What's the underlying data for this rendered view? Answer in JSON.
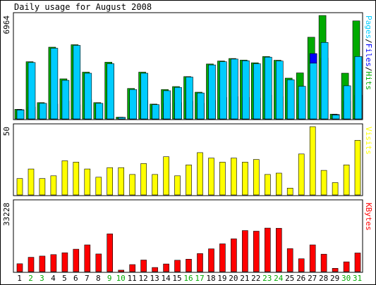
{
  "title": "Daily usage for August 2008",
  "colors": {
    "hits": "#00aa00",
    "files": "#0000ff",
    "pages": "#00ccff",
    "visits": "#ffff00",
    "kbytes": "#ff0000",
    "weekend_label": "#00aa00",
    "weekday_label": "#000000",
    "panel_bg": "#ffffff"
  },
  "chart_data": {
    "type": "bar",
    "title": "Daily usage for August 2008",
    "days": [
      "1",
      "2",
      "3",
      "4",
      "5",
      "6",
      "7",
      "8",
      "9",
      "10",
      "11",
      "12",
      "13",
      "14",
      "15",
      "16",
      "17",
      "18",
      "19",
      "20",
      "21",
      "22",
      "23",
      "24",
      "25",
      "26",
      "27",
      "28",
      "29",
      "30",
      "31"
    ],
    "weekend_days": [
      2,
      3,
      9,
      10,
      16,
      17,
      23,
      24,
      30,
      31
    ],
    "panels": [
      {
        "name": "usage",
        "max_label": "6964",
        "ymax": 6964,
        "right_label_parts": [
          {
            "text": "Pages",
            "color_key": "pages"
          },
          {
            "text": "/",
            "color_key": "weekday_label"
          },
          {
            "text": "Files",
            "color_key": "files"
          },
          {
            "text": "/",
            "color_key": "weekday_label"
          },
          {
            "text": "Hits",
            "color_key": "hits"
          }
        ],
        "series": [
          {
            "name": "Hits",
            "color_key": "hits",
            "values": [
              650,
              3850,
              1100,
              4830,
              2700,
              5000,
              3150,
              1100,
              3820,
              120,
              2050,
              3150,
              1000,
              1980,
              2180,
              2850,
              1800,
              3700,
              3900,
              4070,
              3960,
              3780,
              4200,
              3950,
              2750,
              3100,
              5500,
              6964,
              320,
              3080,
              6600
            ]
          },
          {
            "name": "Files",
            "color_key": "files",
            "values": [
              620,
              800,
              1050,
              1000,
              1200,
              950,
              1300,
              1050,
              1200,
              110,
              1100,
              1250,
              950,
              1050,
              1100,
              1200,
              1050,
              1250,
              1450,
              1500,
              1450,
              1400,
              1600,
              1500,
              1150,
              1000,
              4400,
              4100,
              300,
              1200,
              1600
            ]
          },
          {
            "name": "Pages",
            "color_key": "pages",
            "values": [
              600,
              3800,
              1050,
              4760,
              2600,
              4950,
              3080,
              1050,
              3720,
              100,
              1980,
              3080,
              960,
              1900,
              2120,
              2820,
              1750,
              3640,
              3850,
              4030,
              3920,
              3720,
              4160,
              3900,
              2640,
              2200,
              3750,
              5150,
              270,
              2230,
              4200
            ]
          }
        ]
      },
      {
        "name": "visits",
        "max_label": "50",
        "ymax": 50,
        "right_label_parts": [
          {
            "text": "Visits",
            "color_key": "visits"
          }
        ],
        "series": [
          {
            "name": "Visits",
            "color_key": "visits",
            "values": [
              12,
              19,
              12,
              14,
              25,
              24,
              19,
              13,
              20,
              20,
              15,
              23,
              15,
              28,
              14,
              22,
              31,
              27,
              24,
              27,
              24,
              26,
              15,
              16,
              5,
              30,
              50,
              18,
              9,
              22,
              40
            ]
          }
        ]
      },
      {
        "name": "kbytes",
        "max_label": "33228",
        "ymax": 33228,
        "right_label_parts": [
          {
            "text": "KBytes",
            "color_key": "kbytes"
          }
        ],
        "series": [
          {
            "name": "KBytes",
            "color_key": "kbytes",
            "values": [
              3800,
              6900,
              7500,
              8200,
              9100,
              10800,
              12900,
              8500,
              18200,
              700,
              3400,
              5600,
              2000,
              3700,
              5500,
              6000,
              8700,
              11000,
              13400,
              15800,
              19800,
              19500,
              21000,
              20900,
              11100,
              6200,
              12900,
              8400,
              1600,
              4700,
              9000
            ]
          }
        ]
      }
    ]
  }
}
